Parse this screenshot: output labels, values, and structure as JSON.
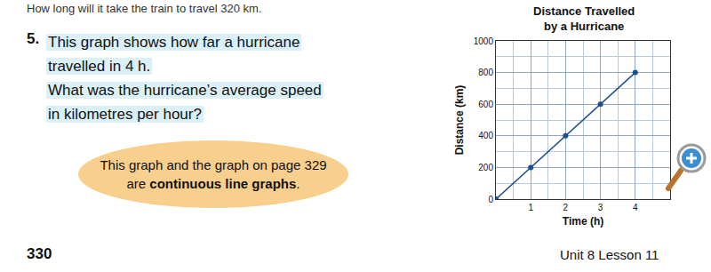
{
  "chart_data": {
    "type": "line",
    "title": "Distance Travelled by a Hurricane",
    "x_label": "Time (h)",
    "y_label": "Distance (km)",
    "x": [
      0,
      1,
      2,
      3,
      4
    ],
    "values": [
      0,
      200,
      400,
      600,
      800
    ],
    "xlim": [
      0,
      5
    ],
    "xticks": [
      1,
      2,
      3,
      4
    ],
    "ylim": [
      0,
      1000
    ],
    "yticks": [
      0,
      200,
      400,
      600,
      800,
      1000
    ],
    "grid": true,
    "color": "#1f4f91",
    "marker": "circle",
    "line_style": "solid"
  },
  "page": {
    "previous_question": "How long will it take the train to travel 320 km.",
    "question_number": "5.",
    "question_lines": [
      "This graph shows how far a hurricane",
      "travelled in 4 h.",
      "What was the hurricane’s average speed",
      "in kilometres per hour?"
    ],
    "note": {
      "line1": "This graph and the graph on page 329",
      "line2_start": "are ",
      "line2_bold": "continuous line graphs",
      "line2_end": "."
    },
    "page_number": "330",
    "footer": "Unit 8 Lesson 11"
  }
}
